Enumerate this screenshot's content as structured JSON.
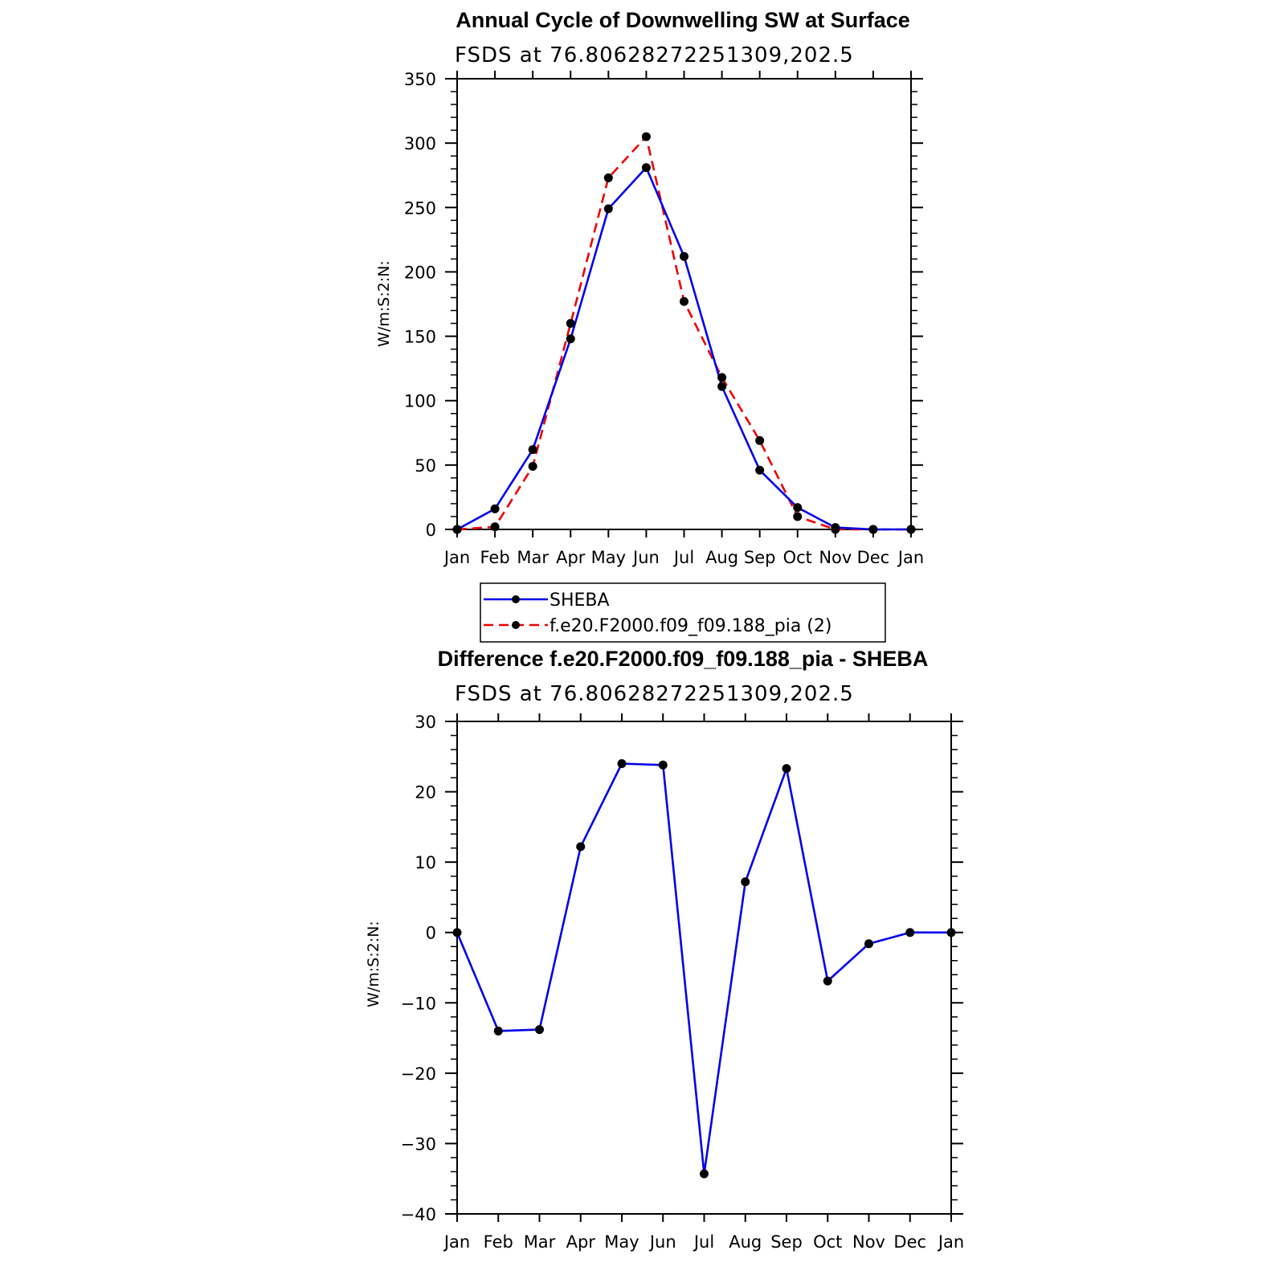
{
  "chart_data": [
    {
      "type": "line",
      "title": "Annual Cycle of Downwelling SW at Surface",
      "subtitle": "FSDS at 76.80628272251309,202.5",
      "ylabel": "W/m:S:2:N:",
      "ylim": [
        0,
        350
      ],
      "yticks": [
        "0",
        "50",
        "100",
        "150",
        "200",
        "250",
        "300",
        "350"
      ],
      "categories": [
        "Jan",
        "Feb",
        "Mar",
        "Apr",
        "May",
        "Jun",
        "Jul",
        "Aug",
        "Sep",
        "Oct",
        "Nov",
        "Dec",
        "Jan"
      ],
      "series": [
        {
          "name": "SHEBA",
          "color": "#0000ee",
          "style": "solid",
          "values": [
            0,
            16,
            62,
            148,
            249,
            281,
            212,
            111,
            46,
            17,
            1.5,
            0,
            0
          ]
        },
        {
          "name": "f.e20.F2000.f09_f09.188_pia (2)",
          "color": "#ee0000",
          "style": "dashed",
          "values": [
            0,
            2,
            49,
            160,
            273,
            305,
            177,
            118,
            69,
            10,
            0,
            0,
            0
          ]
        }
      ],
      "legend": "below"
    },
    {
      "type": "line",
      "title": "Difference f.e20.F2000.f09_f09.188_pia - SHEBA",
      "subtitle": "FSDS at 76.80628272251309,202.5",
      "ylabel": "W/m:S:2:N:",
      "ylim": [
        -40,
        30
      ],
      "yticks": [
        "−40",
        "−30",
        "−20",
        "−10",
        "0",
        "10",
        "20",
        "30"
      ],
      "categories": [
        "Jan",
        "Feb",
        "Mar",
        "Apr",
        "May",
        "Jun",
        "Jul",
        "Aug",
        "Sep",
        "Oct",
        "Nov",
        "Dec",
        "Jan"
      ],
      "series": [
        {
          "color": "#0000ee",
          "style": "solid",
          "values": [
            0,
            -14,
            -13.8,
            12.2,
            24,
            23.8,
            -34.3,
            7.2,
            23.3,
            -6.9,
            -1.6,
            0,
            0
          ]
        }
      ]
    }
  ]
}
